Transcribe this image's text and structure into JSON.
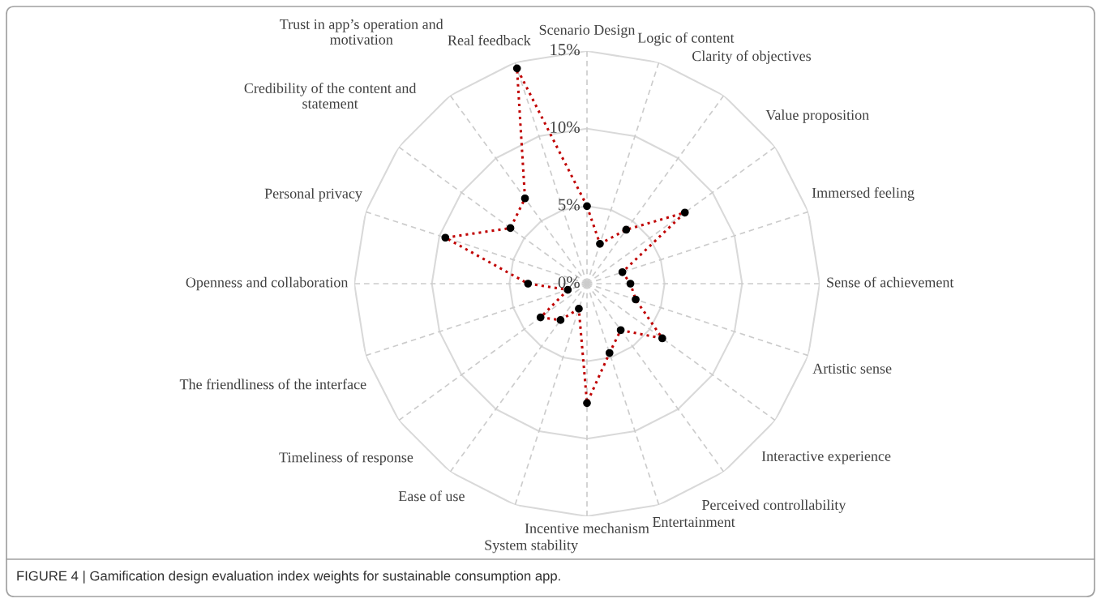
{
  "chart_data": {
    "type": "radar",
    "categories": [
      "Scenario Design",
      "Logic of content",
      "Clarity of objectives",
      "Value proposition",
      "Immersed feeling",
      "Sense of achievement",
      "Artistic sense",
      "Interactive experience",
      "Perceived controllability",
      "Entertainment",
      "Incentive mechanism",
      "System stability",
      "Ease of use",
      "Timeliness of response",
      "The friendliness of the interface",
      "Openness and collaboration",
      "Personal privacy",
      "Credibility of the content and\nstatement",
      "Trust in app’s operation and\nmotivation",
      "Real feedback"
    ],
    "series": [
      {
        "color": "#c00000",
        "values": [
          5.0,
          2.7,
          4.3,
          7.8,
          2.4,
          2.8,
          3.3,
          6.0,
          3.7,
          4.7,
          7.7,
          1.7,
          2.9,
          3.7,
          1.3,
          3.8,
          9.6,
          6.1,
          6.8,
          14.6
        ]
      }
    ],
    "ylim": [
      0,
      15
    ],
    "yticks": [
      {
        "value": 0,
        "label": "0%"
      },
      {
        "value": 5,
        "label": "5%"
      },
      {
        "value": 10,
        "label": "10%"
      },
      {
        "value": 15,
        "label": "15%"
      }
    ],
    "marker": "circle",
    "line_style": "dotted",
    "grid": true,
    "annotations": [
      "FIGURE 4 | Gamification design evaluation index weights for sustainable consumption app."
    ]
  }
}
